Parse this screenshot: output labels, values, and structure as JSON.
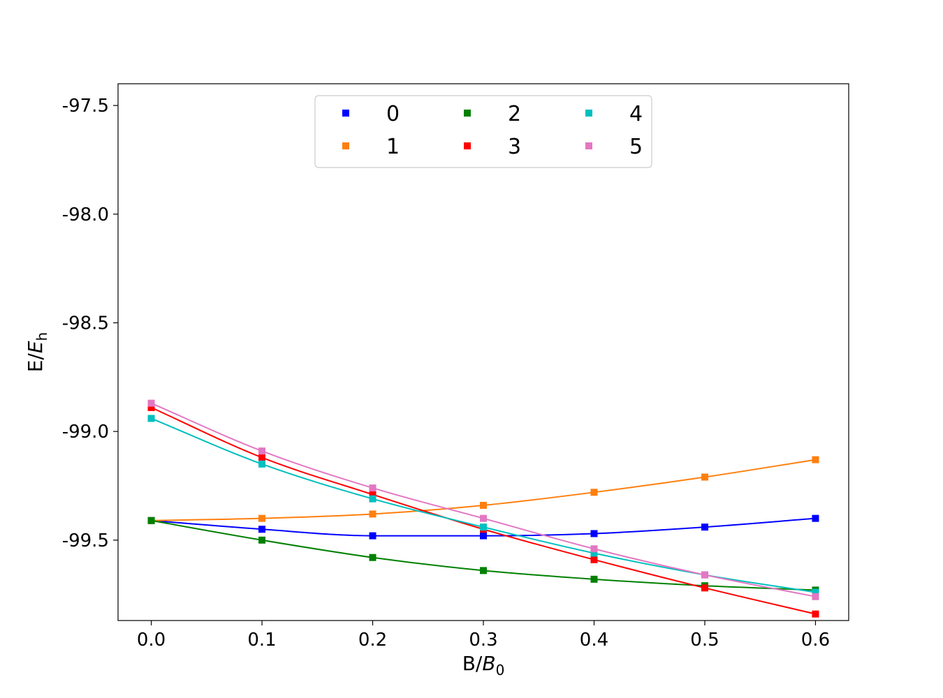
{
  "chart_data": {
    "type": "line",
    "xlabel": {
      "main": "B/",
      "italic": "B",
      "sub": "0"
    },
    "ylabel": {
      "main": "E/",
      "italic": "E",
      "sub": "h"
    },
    "xlim": [
      -0.03,
      0.63
    ],
    "ylim": [
      -99.87,
      -97.4
    ],
    "x_ticks": [
      0.0,
      0.1,
      0.2,
      0.3,
      0.4,
      0.5,
      0.6
    ],
    "x_tick_labels": [
      "0.0",
      "0.1",
      "0.2",
      "0.3",
      "0.4",
      "0.5",
      "0.6"
    ],
    "y_ticks": [
      -97.5,
      -98.0,
      -98.5,
      -99.0,
      -99.5
    ],
    "y_tick_labels": [
      "-97.5",
      "-98.0",
      "-98.5",
      "-99.0",
      "-99.5"
    ],
    "grid": false,
    "legend": {
      "placement": "upper-center",
      "columns": 3
    },
    "marker": "square",
    "x": [
      0.0,
      0.1,
      0.2,
      0.3,
      0.4,
      0.5,
      0.6
    ],
    "series": [
      {
        "name": "0",
        "color": "#0000ff",
        "values": [
          -99.41,
          -99.45,
          -99.48,
          -99.48,
          -99.47,
          -99.44,
          -99.4
        ]
      },
      {
        "name": "1",
        "color": "#ff7f0e",
        "values": [
          -99.41,
          -99.4,
          -99.38,
          -99.34,
          -99.28,
          -99.21,
          -99.13
        ]
      },
      {
        "name": "2",
        "color": "#008000",
        "values": [
          -99.41,
          -99.5,
          -99.58,
          -99.64,
          -99.68,
          -99.71,
          -99.73
        ]
      },
      {
        "name": "3",
        "color": "#ff0000",
        "values": [
          -98.89,
          -99.12,
          -99.29,
          -99.45,
          -99.59,
          -99.72,
          -99.84
        ]
      },
      {
        "name": "4",
        "color": "#00bfbf",
        "values": [
          -98.94,
          -99.15,
          -99.31,
          -99.44,
          -99.56,
          -99.66,
          -99.74
        ]
      },
      {
        "name": "5",
        "color": "#e377c2",
        "values": [
          -98.87,
          -99.09,
          -99.26,
          -99.4,
          -99.54,
          -99.66,
          -99.76
        ]
      }
    ]
  }
}
